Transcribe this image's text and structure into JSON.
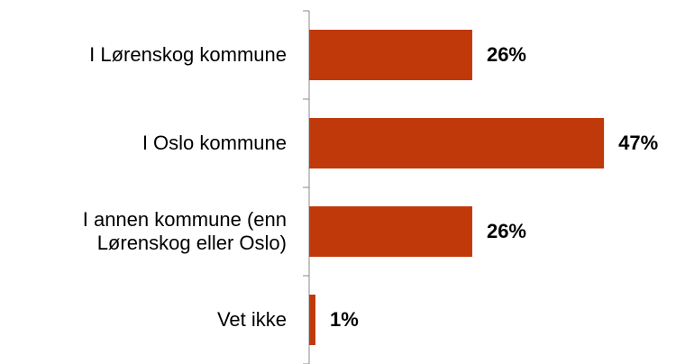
{
  "chart_data": {
    "type": "barh",
    "categories": [
      "I Lørenskog kommune",
      "I Oslo kommune",
      "I annen kommune (enn\nLørenskog eller Oslo)",
      "Vet ikke"
    ],
    "values": [
      26,
      47,
      26,
      1
    ],
    "value_labels": [
      "26%",
      "47%",
      "26%",
      "1%"
    ],
    "color": "#c0390b"
  }
}
